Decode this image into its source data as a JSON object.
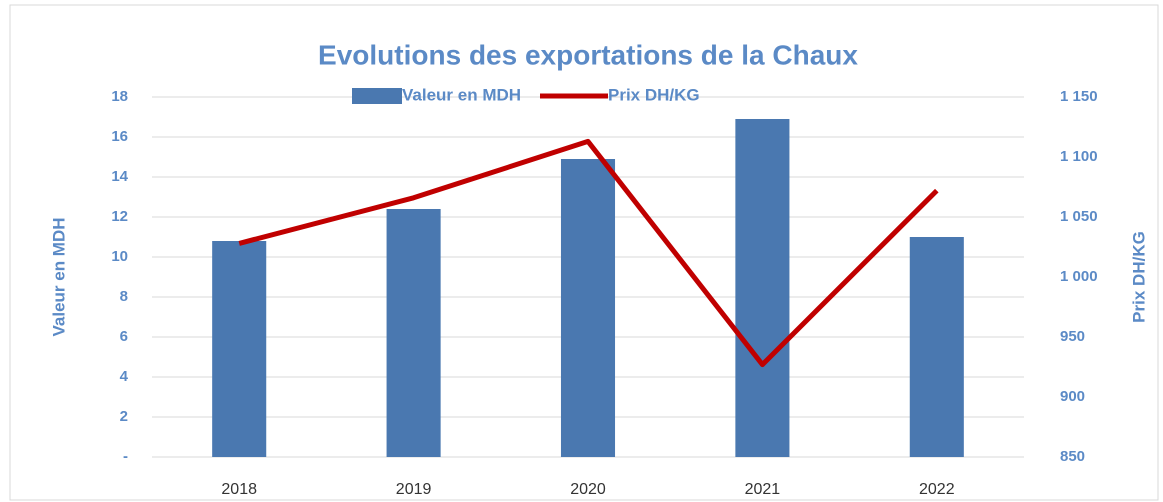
{
  "chart_data": {
    "type": "bar_line",
    "title": "Evolutions des exportations de la Chaux",
    "categories": [
      "2018",
      "2019",
      "2020",
      "2021",
      "2022"
    ],
    "series": [
      {
        "name": "Valeur en MDH",
        "type": "bar",
        "color": "#4a78b0",
        "axis": "y",
        "values": [
          10.8,
          12.4,
          14.9,
          16.9,
          11.0
        ]
      },
      {
        "name": "Prix DH/KG",
        "type": "line",
        "color": "#c00000",
        "axis": "y2",
        "values": [
          1028,
          1066,
          1113,
          927,
          1072
        ]
      }
    ],
    "ylabel": "Valeur en MDH",
    "y2label": "Prix DH/KG",
    "ylim": [
      0,
      18
    ],
    "yticks": [
      {
        "value": 0,
        "label": "-"
      },
      2,
      4,
      6,
      8,
      10,
      12,
      14,
      16,
      18
    ],
    "y2lim": [
      850,
      1150
    ],
    "y2ticks": [
      850,
      900,
      950,
      {
        "value": 1000,
        "label": "1 000"
      },
      {
        "value": 1050,
        "label": "1 050"
      },
      {
        "value": 1100,
        "label": "1 100"
      },
      {
        "value": 1150,
        "label": "1 150"
      }
    ],
    "grid": true,
    "legend": "top"
  }
}
